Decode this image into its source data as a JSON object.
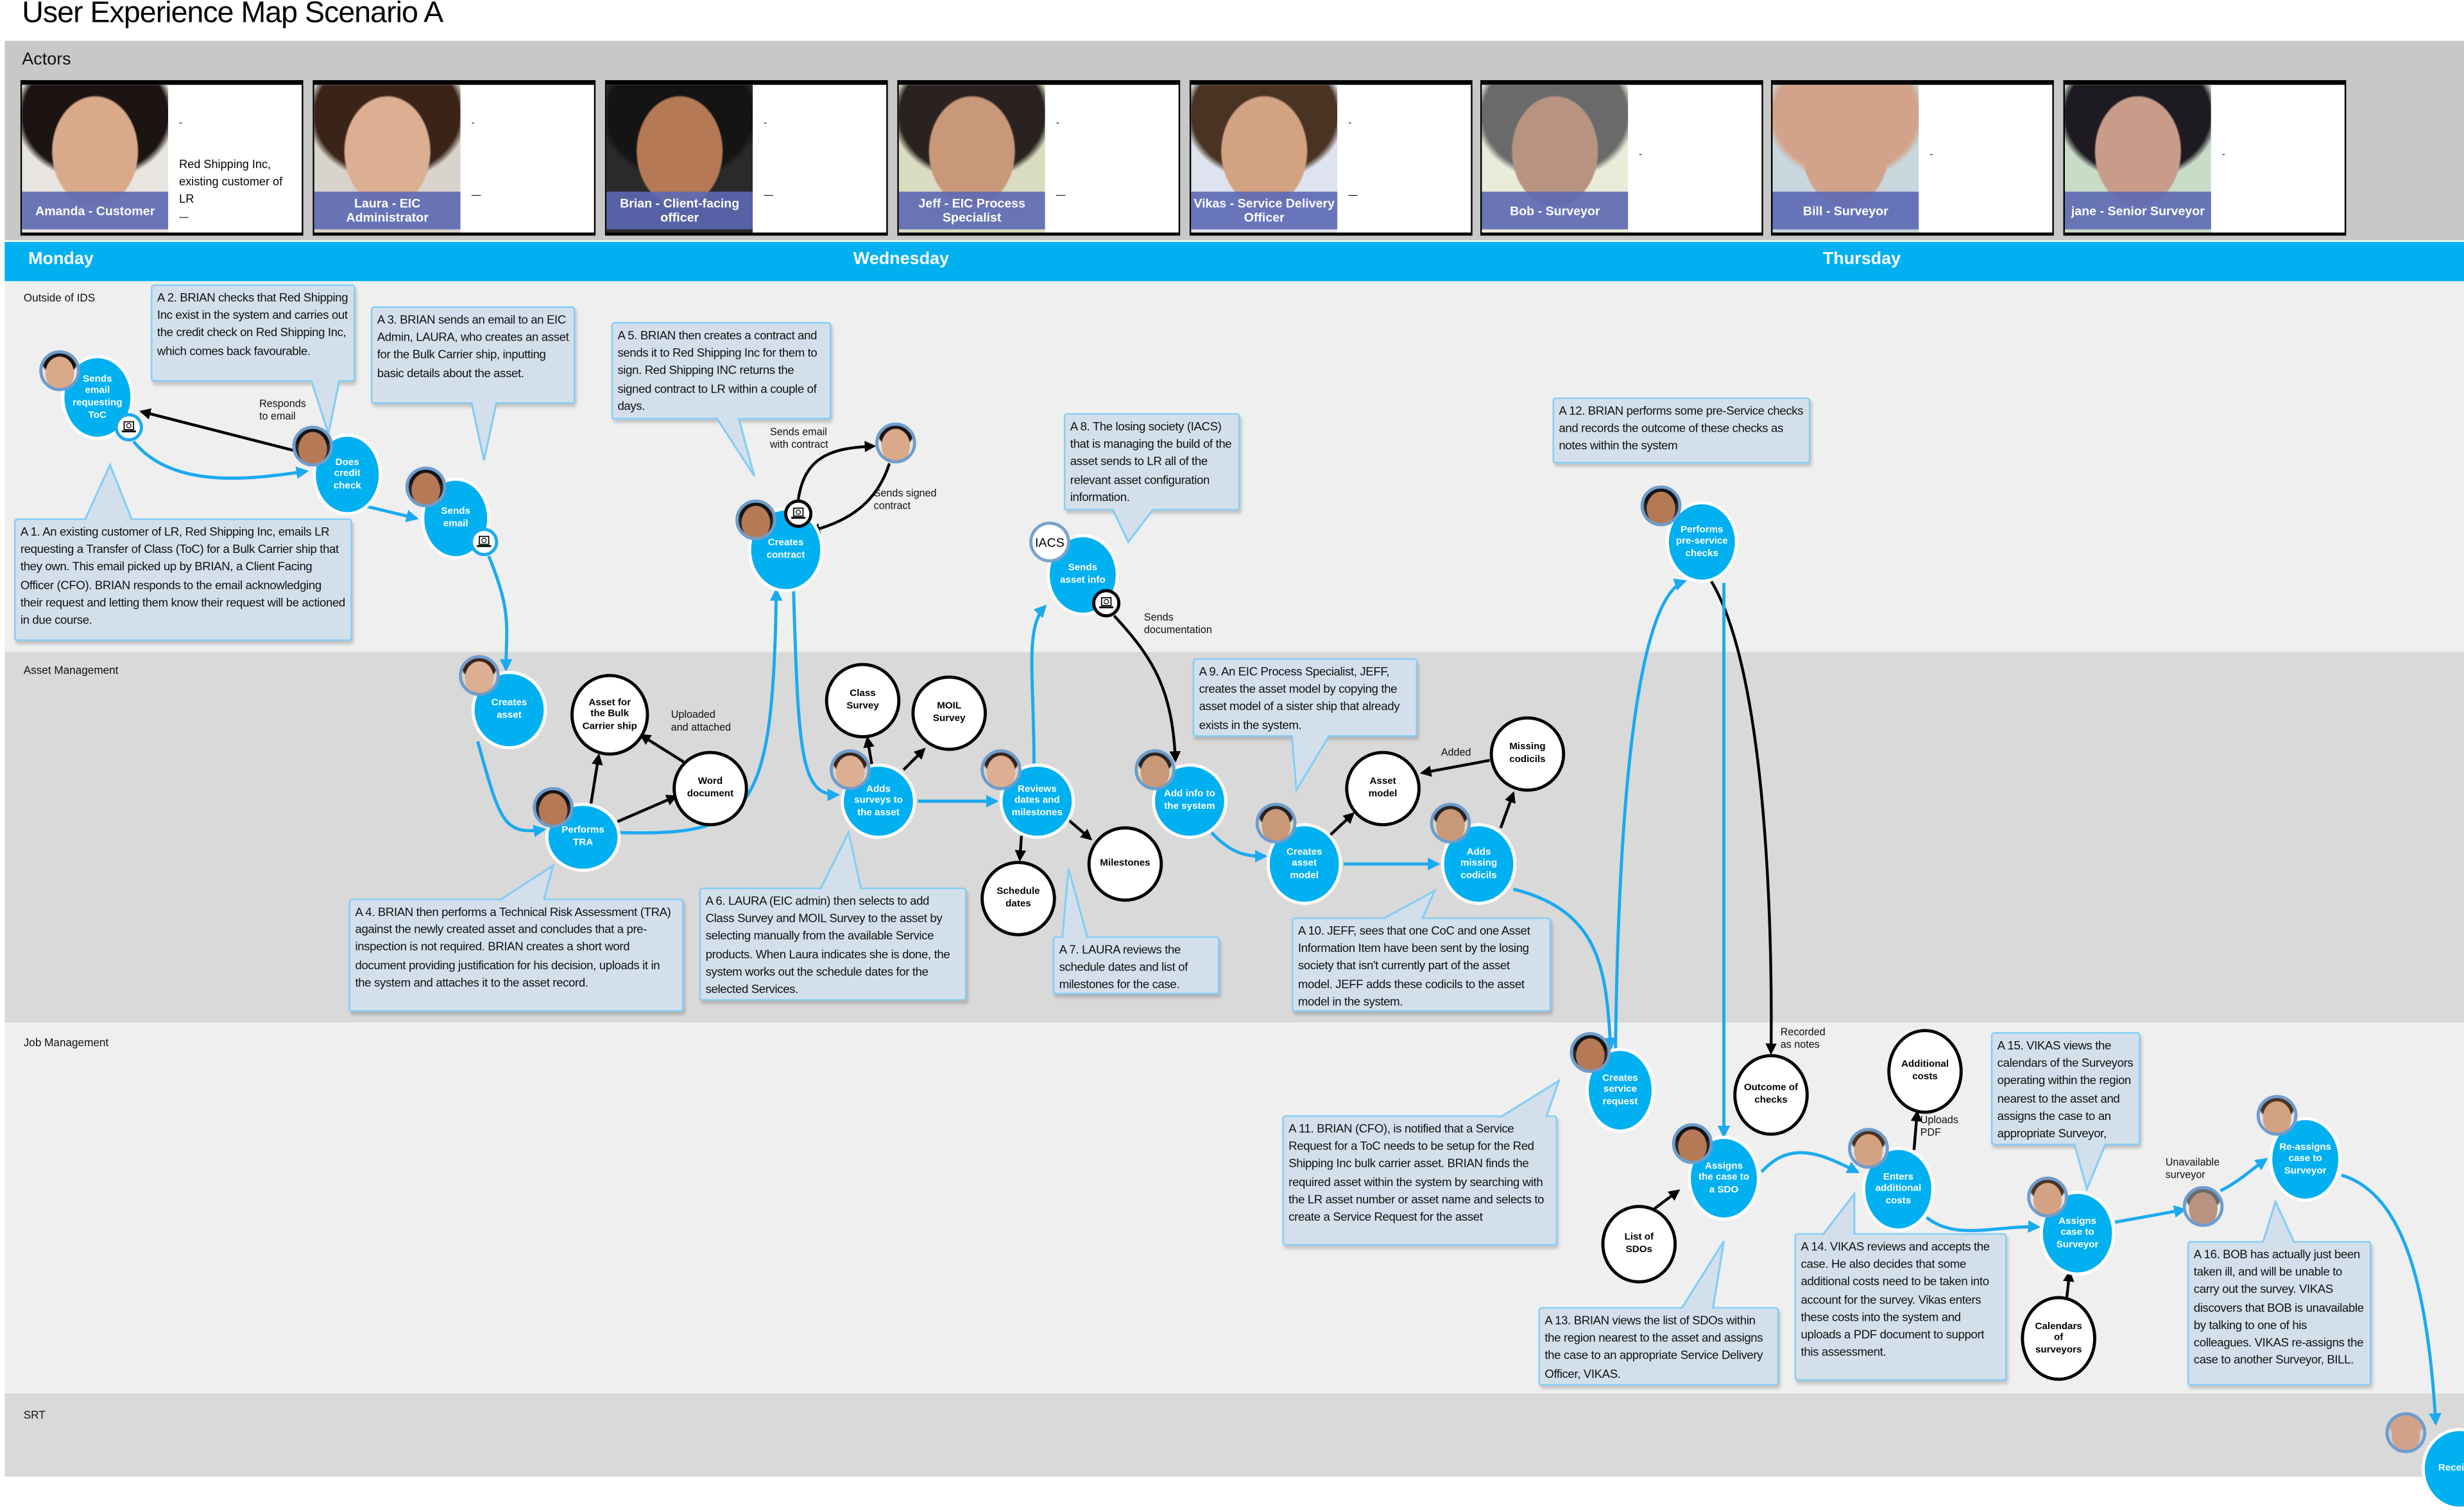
{
  "title": "User Experience Map Scenario A",
  "actors_heading": "Actors",
  "actors": [
    {
      "name": "Amanda - Customer",
      "markers": [
        "-",
        "—"
      ],
      "desc": "Red Shipping Inc, existing customer of LR"
    },
    {
      "name": "Laura - EIC Administrator",
      "markers": [
        "-",
        "—"
      ],
      "desc": ""
    },
    {
      "name": "Brian - Client-facing officer",
      "markers": [
        "-",
        "—"
      ],
      "desc": ""
    },
    {
      "name": "Jeff - EIC Process Specialist",
      "markers": [
        "-",
        "—"
      ],
      "desc": ""
    },
    {
      "name": "Vikas - Service Delivery Officer",
      "markers": [
        "-",
        "—"
      ],
      "desc": ""
    },
    {
      "name": "Bob - Surveyor",
      "markers": [
        "-"
      ],
      "desc": ""
    },
    {
      "name": "Bill - Surveyor",
      "markers": [
        "-"
      ],
      "desc": ""
    },
    {
      "name": "jane - Senior Surveyor",
      "markers": [
        "-"
      ],
      "desc": ""
    }
  ],
  "days": [
    "Monday",
    "Wednesday",
    "Thursday"
  ],
  "lanes": [
    "Outside of IDS",
    "Asset Management",
    "Job Management",
    "SRT"
  ],
  "nodes": {
    "n1": "Sends email requesting ToC",
    "n2": "Does credit check",
    "n3": "Sends email",
    "n4": "Creates contract",
    "n5": "Sends asset info",
    "n6": "Performs pre-service checks",
    "n7": "Creates asset",
    "w8": "Asset for the Bulk Carrier ship",
    "w9": "Word document",
    "n10": "Performs TRA",
    "w11": "Class Survey",
    "w12": "MOIL Survey",
    "n13": "Adds surveys to the asset",
    "n14": "Reviews dates and milestones",
    "w15": "Schedule dates",
    "w16": "Milestones",
    "n17": "Add info to the system",
    "n18": "Creates asset model",
    "w19": "Asset model",
    "n20": "Adds missing codicils",
    "w21": "Missing codicils",
    "n22": "Creates service request",
    "w23": "Outcome of checks",
    "n24": "Assigns the case to a SDO",
    "w25": "List of SDOs",
    "w26": "Additional costs",
    "n27": "Enters additional costs",
    "n28": "Assigns case to Surveyor",
    "w29": "Calendars of surveyors",
    "n31": "Re-assigns case to Surveyor",
    "n32": "Receives"
  },
  "external_party": "IACS",
  "flow_labels": {
    "responds": "Responds\nto email",
    "sends_contract": "Sends email\nwith contract",
    "signed_contract": "Sends signed\ncontract",
    "documentation": "Sends\ndocumentation",
    "uploaded": "Uploaded\nand attached",
    "added": "Added",
    "recorded": "Recorded\nas notes",
    "uploads_pdf": "Uploads\nPDF",
    "unavailable": "Unavailable\nsurveyor"
  },
  "callouts": {
    "A1": "A 1. An existing customer of LR, Red Shipping Inc, emails LR requesting a Transfer of Class (ToC) for a Bulk Carrier ship that they own. This email picked up by BRIAN, a Client Facing Officer (CFO). BRIAN responds to the email acknowledging their request and letting them know their request will be actioned in due course.",
    "A2": "A 2. BRIAN checks that Red Shipping Inc exist in the system and carries out the credit check on Red Shipping Inc, which comes back favourable.",
    "A3": "A 3. BRIAN sends an email to an EIC Admin, LAURA, who creates an asset for the Bulk Carrier ship, inputting basic details about the asset.",
    "A4": "A 4. BRIAN then performs a Technical Risk Assessment (TRA) against the newly created asset and concludes that a pre-inspection is not required. BRIAN creates a short word document providing justification for his decision, uploads it in the system and attaches it to the asset record.",
    "A5": "A 5. BRIAN then creates a contract and sends it to Red Shipping Inc for them to sign. Red Shipping INC returns the signed contract to LR within a couple of days.",
    "A6": "A 6. LAURA (EIC admin) then selects to add Class Survey  and MOIL Survey to the asset by selecting manually from the available Service products. When Laura indicates she is done, the system works out the  schedule dates for the selected Services.",
    "A7": "A 7. LAURA reviews the schedule dates and list of milestones for the case.",
    "A8": "A 8. The losing society (IACS) that is managing the build of the asset sends to LR all of the relevant asset configuration information.",
    "A9": "A 9. An EIC Process Specialist, JEFF, creates the asset model by copying the asset model of a sister ship that already exists in the system.",
    "A10": "A 10. JEFF, sees that one CoC and one Asset Information Item have been sent by the losing society that isn't currently part of the asset model. JEFF adds these codicils to the asset model in the system.",
    "A11": "A 11. BRIAN (CFO), is notified that a Service Request for a ToC needs to be setup for the Red Shipping Inc bulk carrier asset. BRIAN finds the required asset within the system by searching with the LR asset number or asset name and selects to create a Service Request for the asset",
    "A12": "A 12. BRIAN performs some pre-Service checks and records the outcome of these checks as notes within the system",
    "A13": "A 13. BRIAN views the list of SDOs within the region nearest to the asset and assigns the case to an appropriate Service Delivery Officer, VIKAS.",
    "A14": "A 14. VIKAS reviews and accepts the case. He also decides that some additional costs need to be taken into account for the survey. Vikas enters these costs into the system and uploads a PDF document to support this assessment.",
    "A15": "A 15. VIKAS views the calendars of the Surveyors operating within the region nearest to the asset and assigns the case to an appropriate Surveyor, BOB.",
    "A16": "A 16. BOB has actually just been taken ill, and will be unable to carry out the survey. VIKAS discovers that BOB is unavailable by talking to one of his colleagues. VIKAS re-assigns the case to another Surveyor, BILL."
  },
  "icons": {
    "laptop": "laptop-icon",
    "avatar": "person-avatar"
  },
  "colors": {
    "action_node": "#00b0f0",
    "day_bar": "#00b0f0",
    "callout_fill": "#d3e0eb",
    "callout_border": "#86cdf5",
    "actor_strip": "#5c68b4",
    "flow_arrow": "#1aaaf0",
    "data_arrow": "#000000"
  }
}
